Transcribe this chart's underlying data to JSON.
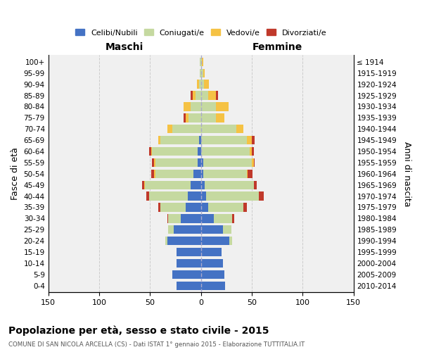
{
  "age_groups": [
    "100+",
    "95-99",
    "90-94",
    "85-89",
    "80-84",
    "75-79",
    "70-74",
    "65-69",
    "60-64",
    "55-59",
    "50-54",
    "45-49",
    "40-44",
    "35-39",
    "30-34",
    "25-29",
    "20-24",
    "15-19",
    "10-14",
    "5-9",
    "0-4"
  ],
  "birth_years": [
    "≤ 1914",
    "1915-1919",
    "1920-1924",
    "1925-1929",
    "1930-1934",
    "1935-1939",
    "1940-1944",
    "1945-1949",
    "1950-1954",
    "1955-1959",
    "1960-1964",
    "1965-1969",
    "1970-1974",
    "1975-1979",
    "1980-1984",
    "1985-1989",
    "1990-1994",
    "1995-1999",
    "2000-2004",
    "2005-2009",
    "2010-2014"
  ],
  "male_celibi": [
    0,
    0,
    0,
    0,
    0,
    0,
    0,
    2,
    3,
    3,
    7,
    10,
    13,
    15,
    20,
    27,
    33,
    24,
    24,
    28,
    24
  ],
  "male_coniugati": [
    1,
    1,
    2,
    5,
    10,
    12,
    28,
    38,
    45,
    42,
    38,
    45,
    38,
    25,
    12,
    5,
    2,
    0,
    0,
    0,
    0
  ],
  "male_vedovi": [
    0,
    0,
    2,
    3,
    7,
    3,
    5,
    2,
    1,
    1,
    1,
    1,
    0,
    0,
    0,
    0,
    0,
    0,
    0,
    0,
    0
  ],
  "male_divorziati": [
    0,
    0,
    0,
    2,
    0,
    2,
    0,
    0,
    2,
    2,
    3,
    2,
    3,
    2,
    1,
    0,
    0,
    0,
    0,
    0,
    0
  ],
  "female_celibi": [
    0,
    0,
    0,
    0,
    0,
    0,
    0,
    0,
    0,
    2,
    2,
    4,
    5,
    7,
    13,
    22,
    28,
    20,
    22,
    23,
    24
  ],
  "female_coniugati": [
    1,
    2,
    3,
    7,
    15,
    15,
    35,
    45,
    48,
    48,
    43,
    48,
    52,
    35,
    18,
    8,
    3,
    0,
    0,
    0,
    0
  ],
  "female_vedovi": [
    1,
    2,
    5,
    8,
    12,
    8,
    7,
    5,
    2,
    2,
    1,
    0,
    0,
    0,
    0,
    0,
    0,
    0,
    0,
    0,
    0
  ],
  "female_divorziati": [
    0,
    0,
    0,
    2,
    0,
    0,
    0,
    3,
    2,
    1,
    5,
    3,
    5,
    3,
    2,
    0,
    0,
    0,
    0,
    0,
    0
  ],
  "color_celibi": "#4472C4",
  "color_coniugati": "#c5d9a0",
  "color_vedovi": "#f5c244",
  "color_divorziati": "#c0392b",
  "title": "Popolazione per età, sesso e stato civile - 2015",
  "subtitle": "COMUNE DI SAN NICOLA ARCELLA (CS) - Dati ISTAT 1° gennaio 2015 - Elaborazione TUTTITALIA.IT",
  "xlabel_left": "Maschi",
  "xlabel_right": "Femmine",
  "ylabel_left": "Fasce di età",
  "ylabel_right": "Anni di nascita",
  "xlim": 150,
  "bg_color": "#ffffff",
  "grid_color": "#cccccc"
}
